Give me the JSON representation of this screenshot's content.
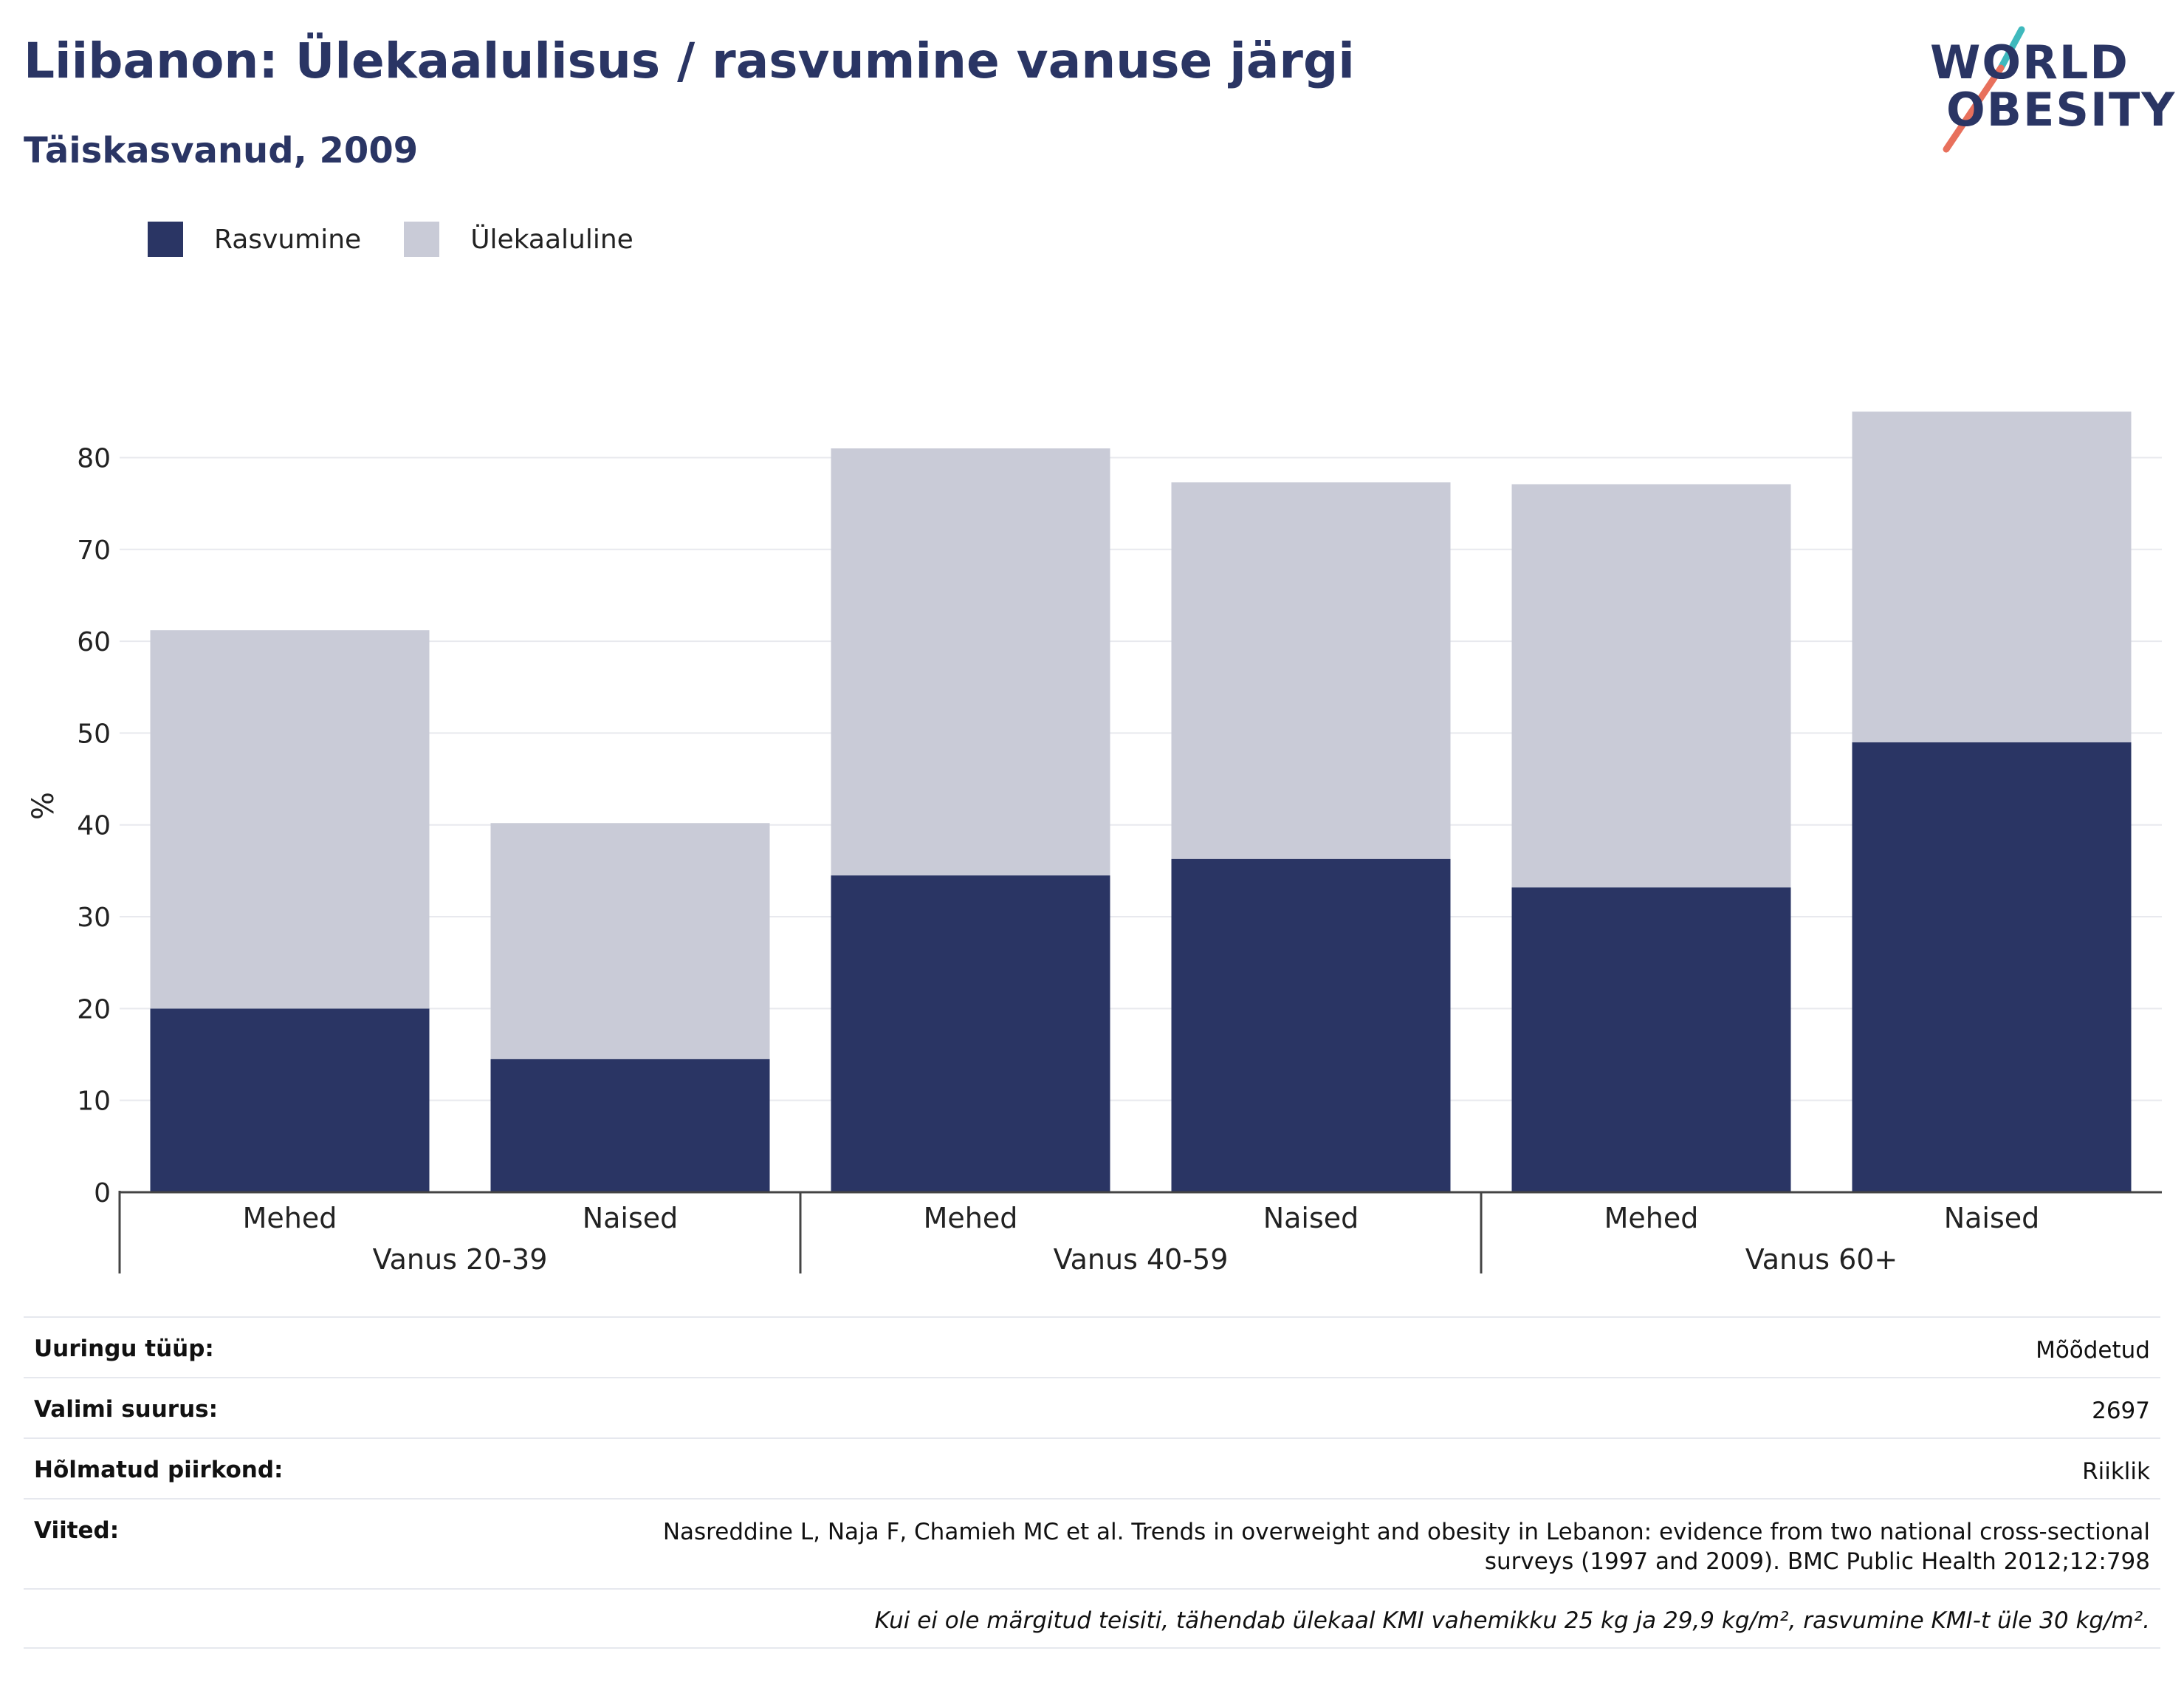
{
  "title": "Liibanon: Ülekaalulisus / rasvumine vanuse järgi",
  "subtitle": "Täiskasvanud, 2009",
  "logo": {
    "line1": "WORLD",
    "line2": "OBESITY"
  },
  "legend": [
    {
      "label": "Rasvumine",
      "color": "#2a3564"
    },
    {
      "label": "Ülekaaluline",
      "color": "#c9cbd7"
    }
  ],
  "chart_data": {
    "type": "bar",
    "stacked": true,
    "ylabel": "%",
    "ylim": [
      0,
      88
    ],
    "yticks": [
      0,
      10,
      20,
      30,
      40,
      50,
      60,
      70,
      80
    ],
    "grid": true,
    "legend_position": "top-left",
    "groups": [
      {
        "label": "Vanus 20-39",
        "categories": [
          "Mehed",
          "Naised"
        ]
      },
      {
        "label": "Vanus 40-59",
        "categories": [
          "Mehed",
          "Naised"
        ]
      },
      {
        "label": "Vanus 60+",
        "categories": [
          "Mehed",
          "Naised"
        ]
      }
    ],
    "categories": [
      "Mehed",
      "Naised",
      "Mehed",
      "Naised",
      "Mehed",
      "Naised"
    ],
    "series": [
      {
        "name": "Rasvumine",
        "color": "#2a3564",
        "values": [
          20,
          14.5,
          34.5,
          36.3,
          33.2,
          49
        ]
      },
      {
        "name": "Ülekaaluline",
        "color": "#c9cbd7",
        "values": [
          41.2,
          25.7,
          46.5,
          41,
          43.9,
          36
        ]
      }
    ]
  },
  "meta": {
    "survey_type": {
      "label": "Uuringu tüüp:",
      "value": "Mõõdetud"
    },
    "sample_size": {
      "label": "Valimi suurus:",
      "value": "2697"
    },
    "region": {
      "label": "Hõlmatud piirkond:",
      "value": "Riiklik"
    },
    "references": {
      "label": "Viited:",
      "value_line1": "Nasreddine L, Naja F, Chamieh MC et al. Trends in overweight and obesity in Lebanon: evidence from two national cross-sectional",
      "value_line2": "surveys (1997 and 2009). BMC Public Health 2012;12:798"
    },
    "note": "Kui ei ole märgitud teisiti, tähendab ülekaal KMI vahemikku 25 kg ja 29,9 kg/m², rasvumine KMI-t üle 30 kg/m²."
  }
}
